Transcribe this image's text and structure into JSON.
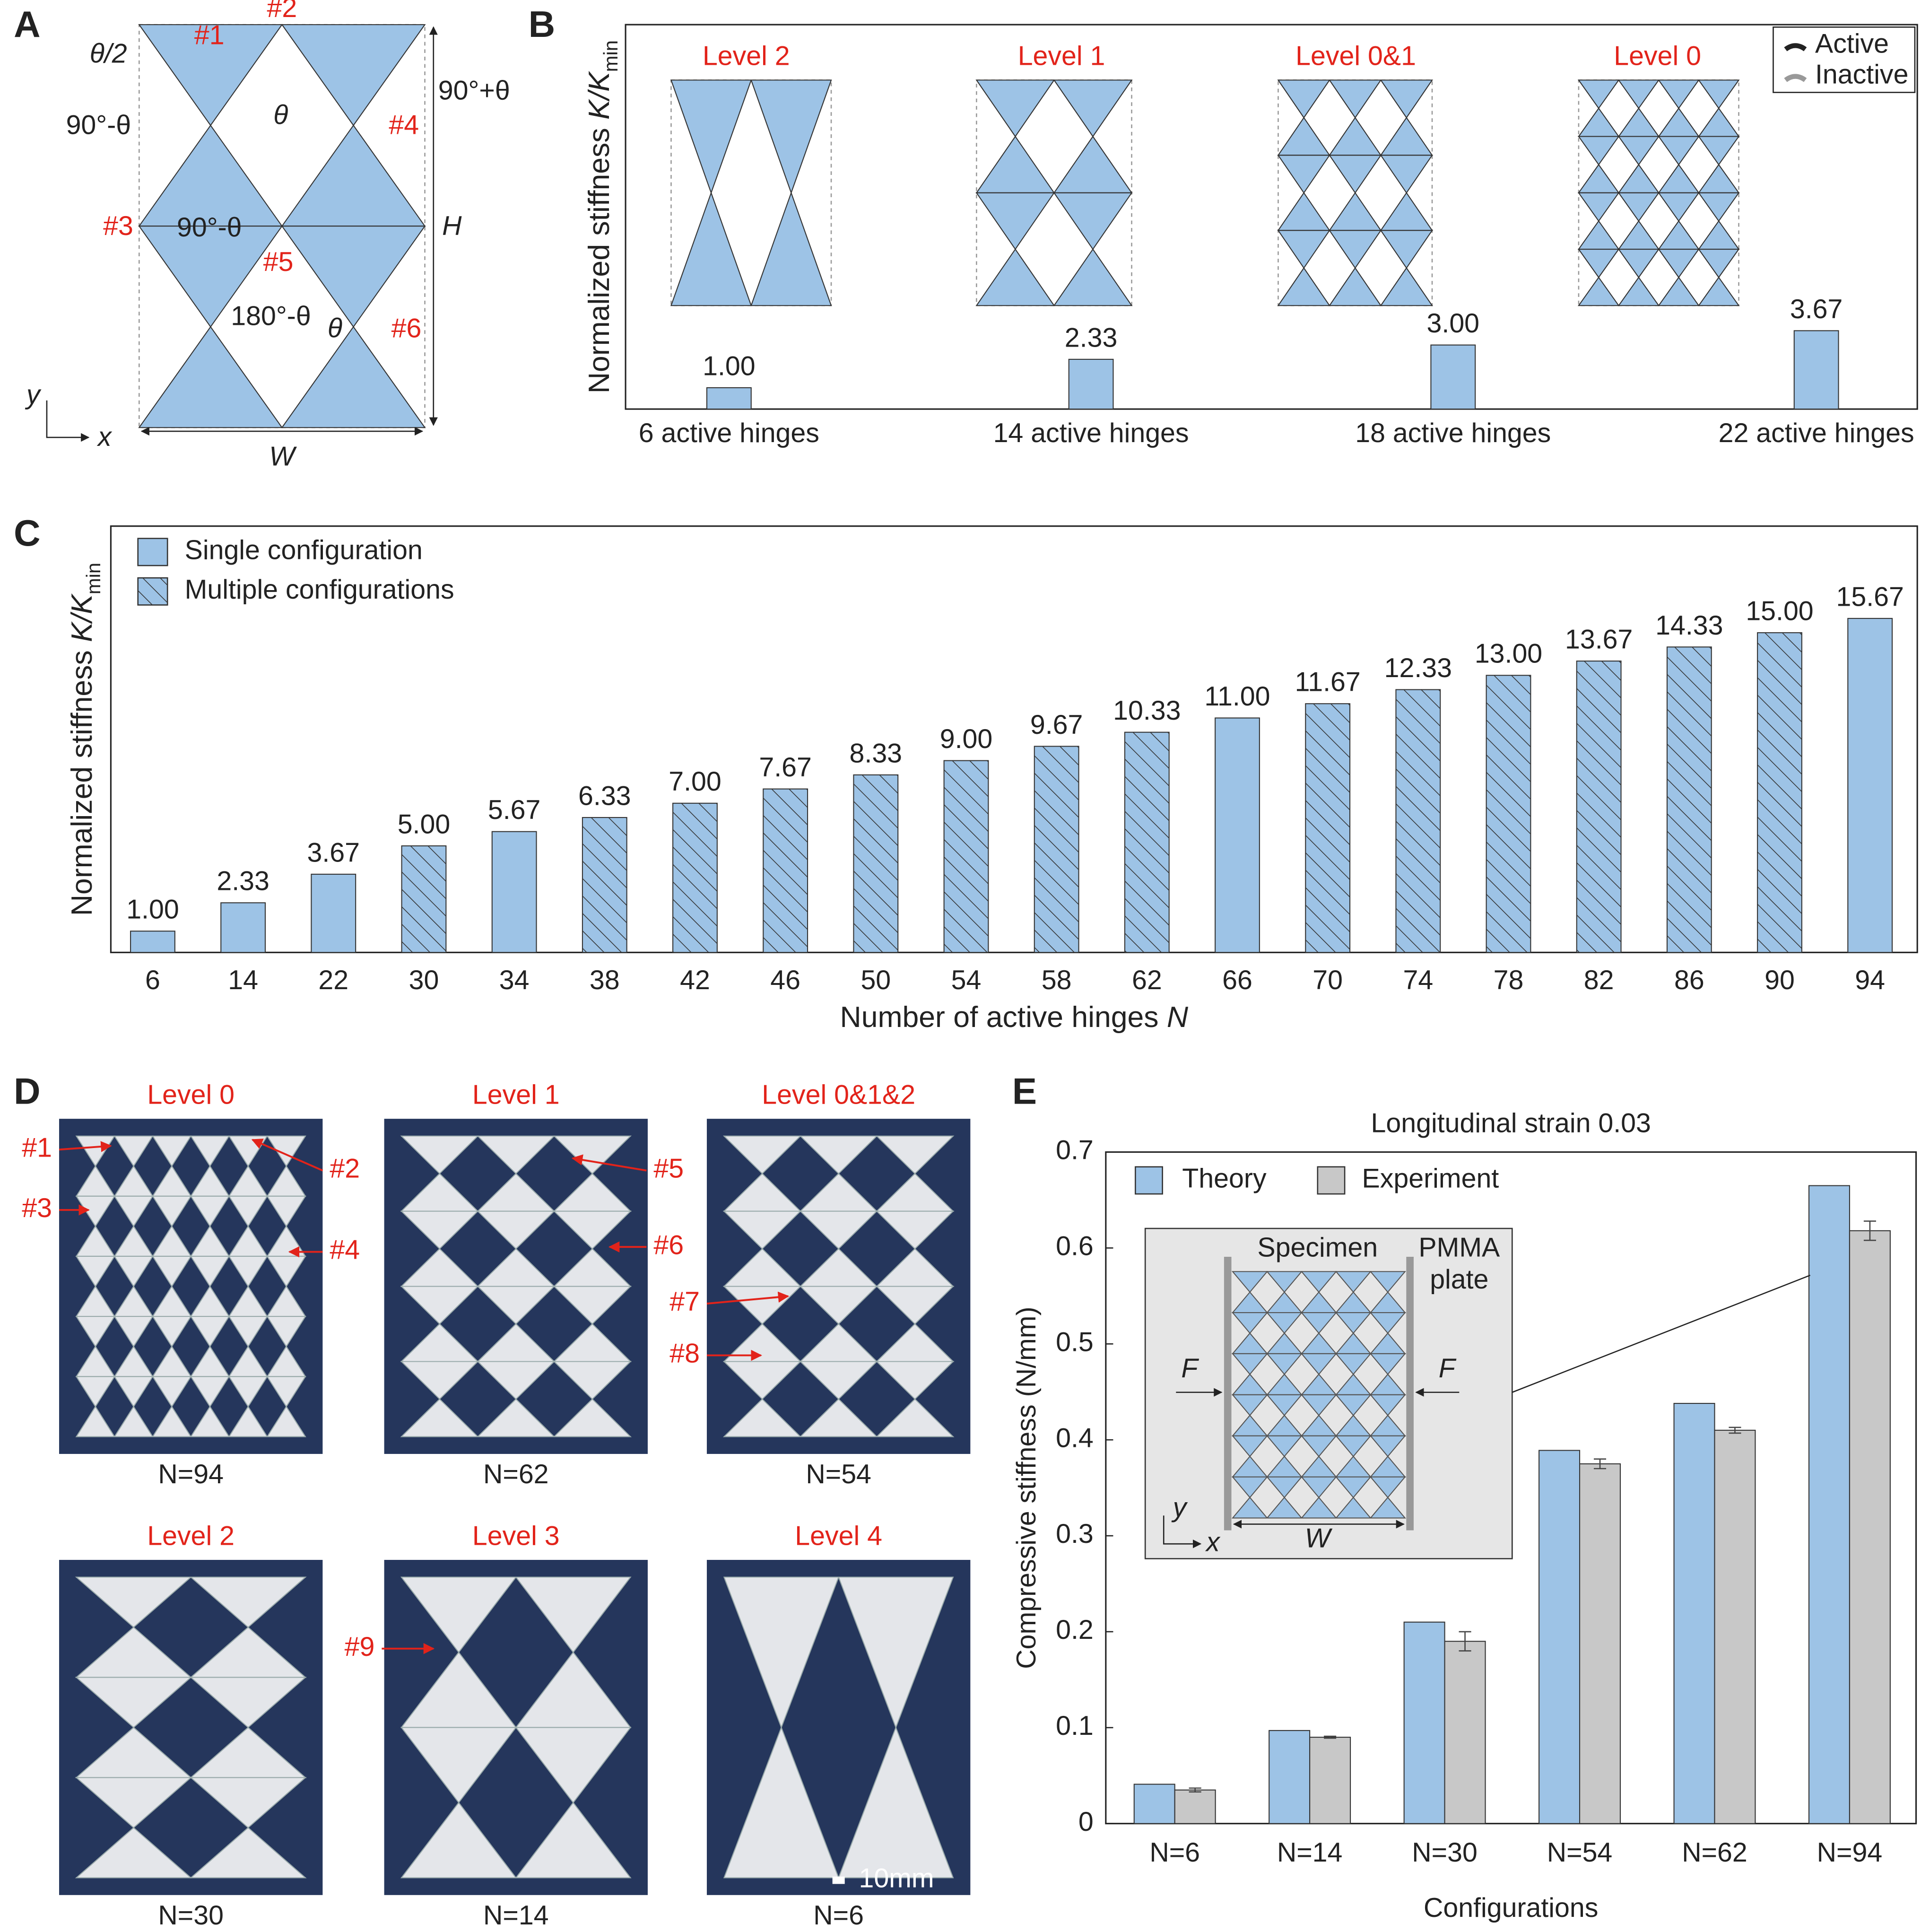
{
  "panel_labels": [
    "A",
    "B",
    "C",
    "D",
    "E"
  ],
  "diagram": {
    "labels": [
      "#1",
      "#2",
      "#3",
      "#4",
      "#5",
      "#6",
      "θ/2",
      "θ",
      "90°-θ",
      "90°+θ",
      "90°-θ",
      "180°-θ",
      "θ",
      "H",
      "W",
      "y",
      "x"
    ]
  },
  "chart_data": [
    {
      "type": "bar",
      "y_label": [
        "Normalized stiffness ",
        "K/K",
        "min"
      ],
      "categories": [
        "6 active hinges",
        "14 active hinges",
        "18 active hinges",
        "22 active hinges"
      ],
      "values": [
        1,
        2.33,
        3,
        3.67
      ],
      "value_labels": [
        "1.00",
        "2.33",
        "3.00",
        "3.67"
      ],
      "color": "#9dc3e6",
      "ylim": [
        0,
        18
      ],
      "annotations": [
        "Level 2",
        "Level 1",
        "Level 0&1",
        "Level 0"
      ],
      "legend": [
        {
          "name": "Active",
          "color": "#222222"
        },
        {
          "name": "Inactive",
          "color": "#999999"
        }
      ],
      "legend_position": "upper right"
    },
    {
      "type": "bar",
      "y_label": [
        "Normalized stiffness ",
        "K/K",
        "min"
      ],
      "x_label": [
        "Number of active hinges ",
        "N"
      ],
      "categories": [
        "6",
        "14",
        "22",
        "30",
        "34",
        "38",
        "42",
        "46",
        "50",
        "54",
        "58",
        "62",
        "66",
        "70",
        "74",
        "78",
        "82",
        "86",
        "90",
        "94"
      ],
      "values": [
        1,
        2.33,
        3.67,
        5,
        5.67,
        6.33,
        7,
        7.67,
        8.33,
        9,
        9.67,
        10.33,
        11,
        11.67,
        12.33,
        13,
        13.67,
        14.33,
        15,
        15.67
      ],
      "value_labels": [
        "1.00",
        "2.33",
        "3.67",
        "5.00",
        "5.67",
        "6.33",
        "7.00",
        "7.67",
        "8.33",
        "9.00",
        "9.67",
        "10.33",
        "11.00",
        "11.67",
        "12.33",
        "13.00",
        "13.67",
        "14.33",
        "15.00",
        "15.67"
      ],
      "hatched": [
        false,
        false,
        false,
        true,
        false,
        true,
        true,
        true,
        true,
        true,
        true,
        true,
        false,
        true,
        true,
        true,
        true,
        true,
        true,
        false
      ],
      "color": "#9dc3e6",
      "ylim": [
        0,
        20
      ],
      "legend": [
        {
          "name": "Single configuration",
          "hatch": false
        },
        {
          "name": "Multiple configurations",
          "hatch": true
        }
      ],
      "legend_position": "upper left"
    },
    {
      "type": "bar",
      "title": "Longitudinal strain 0.03",
      "y_label": "Compressive stiffness (N/mm)",
      "x_label": "Configurations",
      "categories": [
        "N=6",
        "N=14",
        "N=30",
        "N=54",
        "N=62",
        "N=94"
      ],
      "series": [
        {
          "name": "Theory",
          "color": "#9dc3e6",
          "values": [
            0.041,
            0.097,
            0.21,
            0.389,
            0.438,
            0.665
          ]
        },
        {
          "name": "Experiment",
          "color": "#c8c8c8",
          "values": [
            0.035,
            0.09,
            0.19,
            0.375,
            0.41,
            0.618
          ],
          "errors": [
            0.002,
            0.001,
            0.01,
            0.005,
            0.003,
            0.01
          ]
        }
      ],
      "ylim": [
        0,
        0.7
      ],
      "yticks": [
        0,
        0.1,
        0.2,
        0.3,
        0.4,
        0.5,
        0.6,
        0.7
      ],
      "legend_position": "upper left"
    }
  ],
  "photos": [
    {
      "title": "Level 0",
      "n_label": "N=94",
      "markers": [
        "#1",
        "#2",
        "#3",
        "#4"
      ]
    },
    {
      "title": "Level 1",
      "n_label": "N=62",
      "markers": [
        "#5",
        "#6"
      ]
    },
    {
      "title": "Level 0&1&2",
      "n_label": "N=54",
      "markers": [
        "#7",
        "#8"
      ]
    },
    {
      "title": "Level 2",
      "n_label": "N=30",
      "markers": []
    },
    {
      "title": "Level 3",
      "n_label": "N=14",
      "markers": [
        "#9"
      ]
    },
    {
      "title": "Level 4",
      "n_label": "N=6",
      "markers": [],
      "scale": "10mm"
    }
  ],
  "inset": {
    "labels": [
      "Specimen",
      "PMMA",
      "plate",
      "F",
      "F",
      "W",
      "y",
      "x"
    ]
  }
}
